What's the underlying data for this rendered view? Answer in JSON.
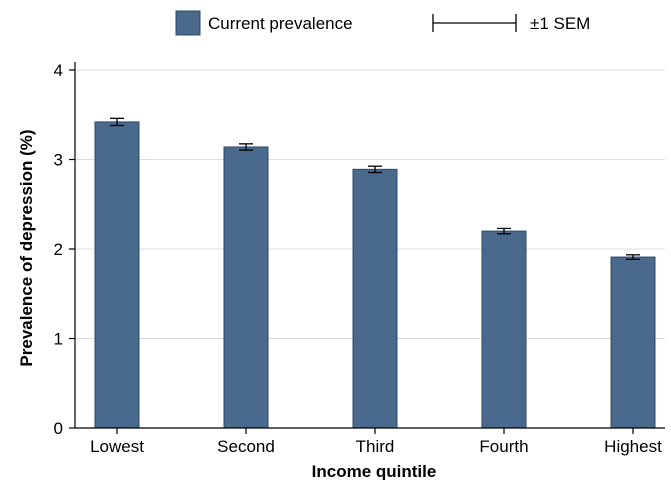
{
  "chart_data": {
    "type": "bar",
    "categories": [
      "Lowest",
      "Second",
      "Third",
      "Fourth",
      "Highest"
    ],
    "values": [
      3.42,
      3.14,
      2.89,
      2.2,
      1.91
    ],
    "error_sem": [
      0.04,
      0.035,
      0.035,
      0.03,
      0.025
    ],
    "xlabel": "Income quintile",
    "ylabel": "Prevalence of depression (%)",
    "ylim": [
      0,
      4
    ],
    "yticks": [
      0,
      1,
      2,
      3,
      4
    ],
    "grid": true,
    "legend_position": "top",
    "legend": {
      "bar_label": "Current prevalence",
      "error_label": "±1 SEM"
    },
    "colors": {
      "bar": "#4a6a8d",
      "bar_edge": "#2e4a66",
      "grid": "#dcdcdc",
      "axis": "#000000"
    }
  }
}
